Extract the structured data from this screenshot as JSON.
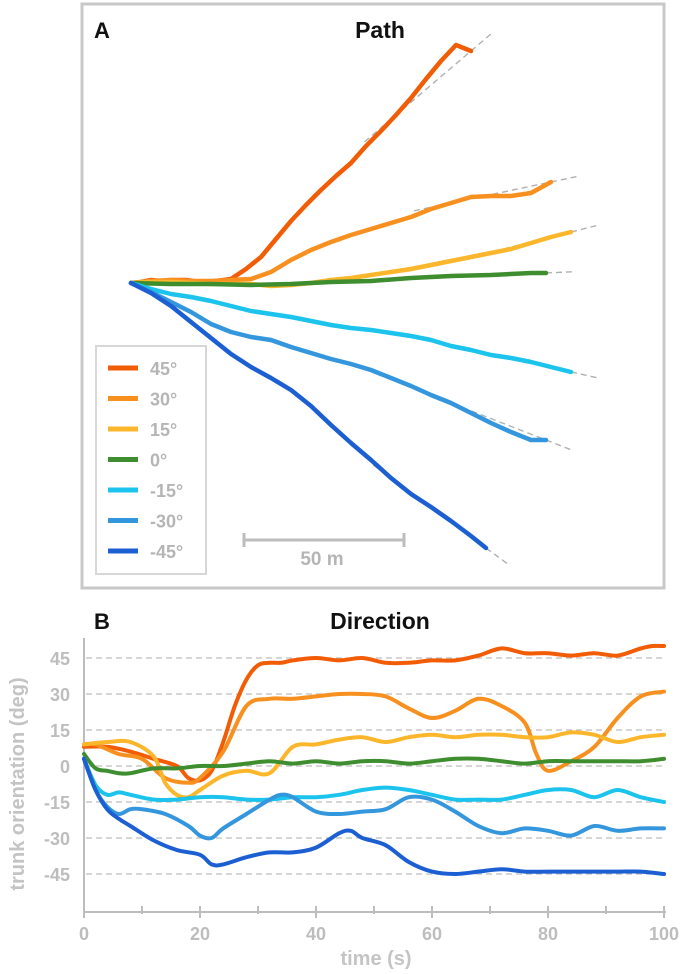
{
  "colors": {
    "c45": "#F25C05",
    "c30": "#F7901E",
    "c15": "#FBB62B",
    "c0": "#3E8E2F",
    "cm15": "#1CC3EC",
    "cm30": "#3496DC",
    "cm45": "#1C5FD3",
    "frame": "#c8c8c8",
    "grid": "#bdbdbd",
    "axis": "#bdbdbd"
  },
  "chart_data": [
    {
      "type": "line",
      "panel": "A",
      "title": "Path",
      "scale_bar_label": "50 m",
      "legend": [
        "45°",
        "30°",
        "15°",
        "0°",
        "-15°",
        "-30°",
        "-45°"
      ],
      "series": [
        {
          "name": "45°",
          "color_key": "c45",
          "x": [
            0,
            10,
            20,
            30,
            40,
            55,
            70,
            85,
            100,
            115,
            130,
            145,
            160,
            175,
            190,
            205,
            220,
            235,
            250,
            265,
            280,
            295,
            310,
            325,
            340
          ],
          "y": [
            0,
            1,
            3,
            2,
            3,
            3,
            1,
            2,
            4,
            14,
            26,
            44,
            62,
            78,
            93,
            107,
            120,
            137,
            152,
            168,
            185,
            204,
            222,
            238,
            232
          ]
        },
        {
          "name": "30°",
          "color_key": "c30",
          "x": [
            0,
            20,
            40,
            60,
            80,
            100,
            120,
            140,
            160,
            180,
            200,
            220,
            240,
            260,
            280,
            300,
            320,
            340,
            360,
            380,
            400,
            420
          ],
          "y": [
            0,
            2,
            3,
            2,
            2,
            3,
            4,
            11,
            23,
            33,
            41,
            48,
            54,
            60,
            66,
            74,
            80,
            86,
            87,
            87,
            90,
            101
          ]
        },
        {
          "name": "15°",
          "color_key": "c15",
          "x": [
            0,
            20,
            40,
            60,
            80,
            100,
            120,
            140,
            160,
            180,
            200,
            220,
            240,
            260,
            280,
            300,
            320,
            340,
            360,
            380,
            400,
            420,
            440
          ],
          "y": [
            0,
            1,
            1,
            0,
            -1,
            -1,
            -1,
            -3,
            -2,
            0,
            3,
            5,
            8,
            11,
            14,
            18,
            22,
            26,
            30,
            34,
            40,
            46,
            51
          ]
        },
        {
          "name": "0°",
          "color_key": "c0",
          "x": [
            0,
            40,
            80,
            120,
            160,
            200,
            240,
            280,
            320,
            360,
            400,
            415
          ],
          "y": [
            0,
            -1,
            -1,
            -2,
            -1,
            1,
            2,
            5,
            7,
            8,
            10,
            10
          ]
        },
        {
          "name": "-15°",
          "color_key": "cm15",
          "x": [
            0,
            20,
            40,
            60,
            80,
            100,
            120,
            140,
            160,
            180,
            200,
            220,
            240,
            260,
            280,
            300,
            320,
            340,
            360,
            380,
            400,
            420,
            440
          ],
          "y": [
            0,
            -6,
            -11,
            -14,
            -18,
            -23,
            -28,
            -31,
            -34,
            -38,
            -42,
            -45,
            -47,
            -50,
            -53,
            -57,
            -63,
            -67,
            -72,
            -75,
            -79,
            -84,
            -89
          ]
        },
        {
          "name": "-30°",
          "color_key": "cm30",
          "x": [
            0,
            20,
            40,
            60,
            80,
            100,
            120,
            140,
            160,
            180,
            200,
            220,
            240,
            260,
            280,
            300,
            320,
            340,
            360,
            380,
            400,
            415
          ],
          "y": [
            0,
            -9,
            -19,
            -29,
            -41,
            -49,
            -54,
            -57,
            -64,
            -70,
            -76,
            -81,
            -87,
            -95,
            -103,
            -112,
            -120,
            -130,
            -140,
            -149,
            -157,
            -157
          ]
        },
        {
          "name": "-45°",
          "color_key": "cm45",
          "x": [
            0,
            20,
            40,
            60,
            80,
            100,
            120,
            140,
            160,
            180,
            200,
            220,
            240,
            260,
            280,
            300,
            320,
            340,
            355
          ],
          "y": [
            0,
            -10,
            -23,
            -39,
            -55,
            -71,
            -84,
            -95,
            -107,
            -123,
            -142,
            -160,
            -177,
            -195,
            -211,
            -224,
            -238,
            -253,
            -265
          ]
        }
      ]
    },
    {
      "type": "line",
      "panel": "B",
      "title": "Direction",
      "xlabel": "time (s)",
      "ylabel": "trunk orientation (deg)",
      "xlim": [
        0,
        100
      ],
      "ylim": [
        -55,
        55
      ],
      "xticks": [
        0,
        20,
        40,
        60,
        80,
        100
      ],
      "xticks_minor": [
        10,
        30,
        50,
        70,
        90
      ],
      "yticks": [
        -45,
        -30,
        -15,
        0,
        15,
        30,
        45
      ],
      "grid": true,
      "series": [
        {
          "name": "45°",
          "color_key": "c45",
          "x": [
            0,
            4,
            8,
            12,
            16,
            18,
            20,
            22,
            24,
            26,
            28,
            30,
            32,
            34,
            36,
            40,
            44,
            48,
            52,
            56,
            60,
            64,
            68,
            72,
            76,
            80,
            84,
            88,
            92,
            96,
            98,
            100
          ],
          "y": [
            8,
            8,
            6,
            3,
            0,
            -5,
            -6,
            -2,
            10,
            25,
            36,
            42,
            43,
            43,
            44,
            45,
            44,
            45,
            43,
            43,
            44,
            44,
            46,
            49,
            47,
            47,
            46,
            47,
            46,
            49,
            50,
            50
          ]
        },
        {
          "name": "30°",
          "color_key": "c30",
          "x": [
            0,
            2,
            6,
            10,
            14,
            18,
            20,
            24,
            28,
            32,
            36,
            40,
            44,
            48,
            52,
            56,
            60,
            64,
            68,
            72,
            76,
            78,
            80,
            84,
            88,
            92,
            96,
            100
          ],
          "y": [
            9,
            9,
            5,
            3,
            -5,
            -7,
            -5,
            6,
            25,
            28,
            28,
            29,
            30,
            30,
            29,
            24,
            20,
            23,
            28,
            25,
            18,
            5,
            -2,
            2,
            8,
            20,
            29,
            31
          ]
        },
        {
          "name": "15°",
          "color_key": "c15",
          "x": [
            0,
            4,
            8,
            12,
            14,
            16,
            18,
            20,
            24,
            28,
            32,
            36,
            40,
            44,
            48,
            52,
            56,
            60,
            64,
            68,
            72,
            76,
            80,
            84,
            88,
            92,
            96,
            100
          ],
          "y": [
            9,
            10,
            10,
            4,
            -7,
            -12,
            -13,
            -10,
            -4,
            -2,
            -3,
            8,
            9,
            11,
            12,
            10,
            12,
            13,
            12,
            13,
            13,
            12,
            12,
            14,
            13,
            10,
            12,
            13
          ]
        },
        {
          "name": "0°",
          "color_key": "c0",
          "x": [
            0,
            2,
            4,
            6,
            8,
            12,
            16,
            20,
            24,
            28,
            32,
            36,
            40,
            44,
            48,
            52,
            56,
            60,
            64,
            68,
            72,
            76,
            80,
            84,
            88,
            92,
            96,
            100
          ],
          "y": [
            5,
            -1,
            -2,
            -3,
            -3,
            -1,
            -1,
            0,
            0,
            1,
            2,
            1,
            2,
            1,
            2,
            2,
            1,
            2,
            3,
            3,
            2,
            1,
            2,
            2,
            2,
            2,
            2,
            3
          ]
        },
        {
          "name": "-15°",
          "color_key": "cm15",
          "x": [
            0,
            2,
            4,
            6,
            8,
            12,
            16,
            20,
            24,
            28,
            32,
            36,
            40,
            44,
            48,
            52,
            56,
            60,
            64,
            68,
            72,
            76,
            80,
            84,
            88,
            92,
            96,
            100
          ],
          "y": [
            3,
            -8,
            -12,
            -11,
            -12,
            -14,
            -14,
            -13,
            -13,
            -14,
            -14,
            -13,
            -13,
            -12,
            -10,
            -9,
            -10,
            -12,
            -14,
            -14,
            -14,
            -12,
            -10,
            -10,
            -13,
            -10,
            -13,
            -15
          ]
        },
        {
          "name": "-30°",
          "color_key": "cm30",
          "x": [
            0,
            2,
            4,
            6,
            8,
            10,
            14,
            18,
            20,
            22,
            24,
            28,
            32,
            34,
            36,
            40,
            44,
            48,
            52,
            56,
            60,
            64,
            68,
            72,
            76,
            80,
            84,
            88,
            92,
            96,
            100
          ],
          "y": [
            3,
            -10,
            -17,
            -20,
            -18,
            -18,
            -20,
            -25,
            -29,
            -30,
            -26,
            -20,
            -14,
            -12,
            -13,
            -19,
            -20,
            -19,
            -18,
            -13,
            -14,
            -19,
            -25,
            -28,
            -26,
            -27,
            -29,
            -25,
            -27,
            -26,
            -26
          ]
        },
        {
          "name": "-45°",
          "color_key": "cm45",
          "x": [
            0,
            2,
            4,
            6,
            8,
            12,
            16,
            20,
            22,
            24,
            28,
            32,
            36,
            40,
            44,
            46,
            48,
            52,
            56,
            60,
            64,
            68,
            72,
            76,
            80,
            84,
            88,
            92,
            96,
            100
          ],
          "y": [
            3,
            -10,
            -18,
            -22,
            -25,
            -31,
            -35,
            -37,
            -41,
            -41,
            -38,
            -36,
            -36,
            -34,
            -28,
            -27,
            -30,
            -33,
            -40,
            -44,
            -45,
            -44,
            -43,
            -44,
            -44,
            -44,
            -44,
            -44,
            -44,
            -45
          ]
        }
      ]
    }
  ]
}
